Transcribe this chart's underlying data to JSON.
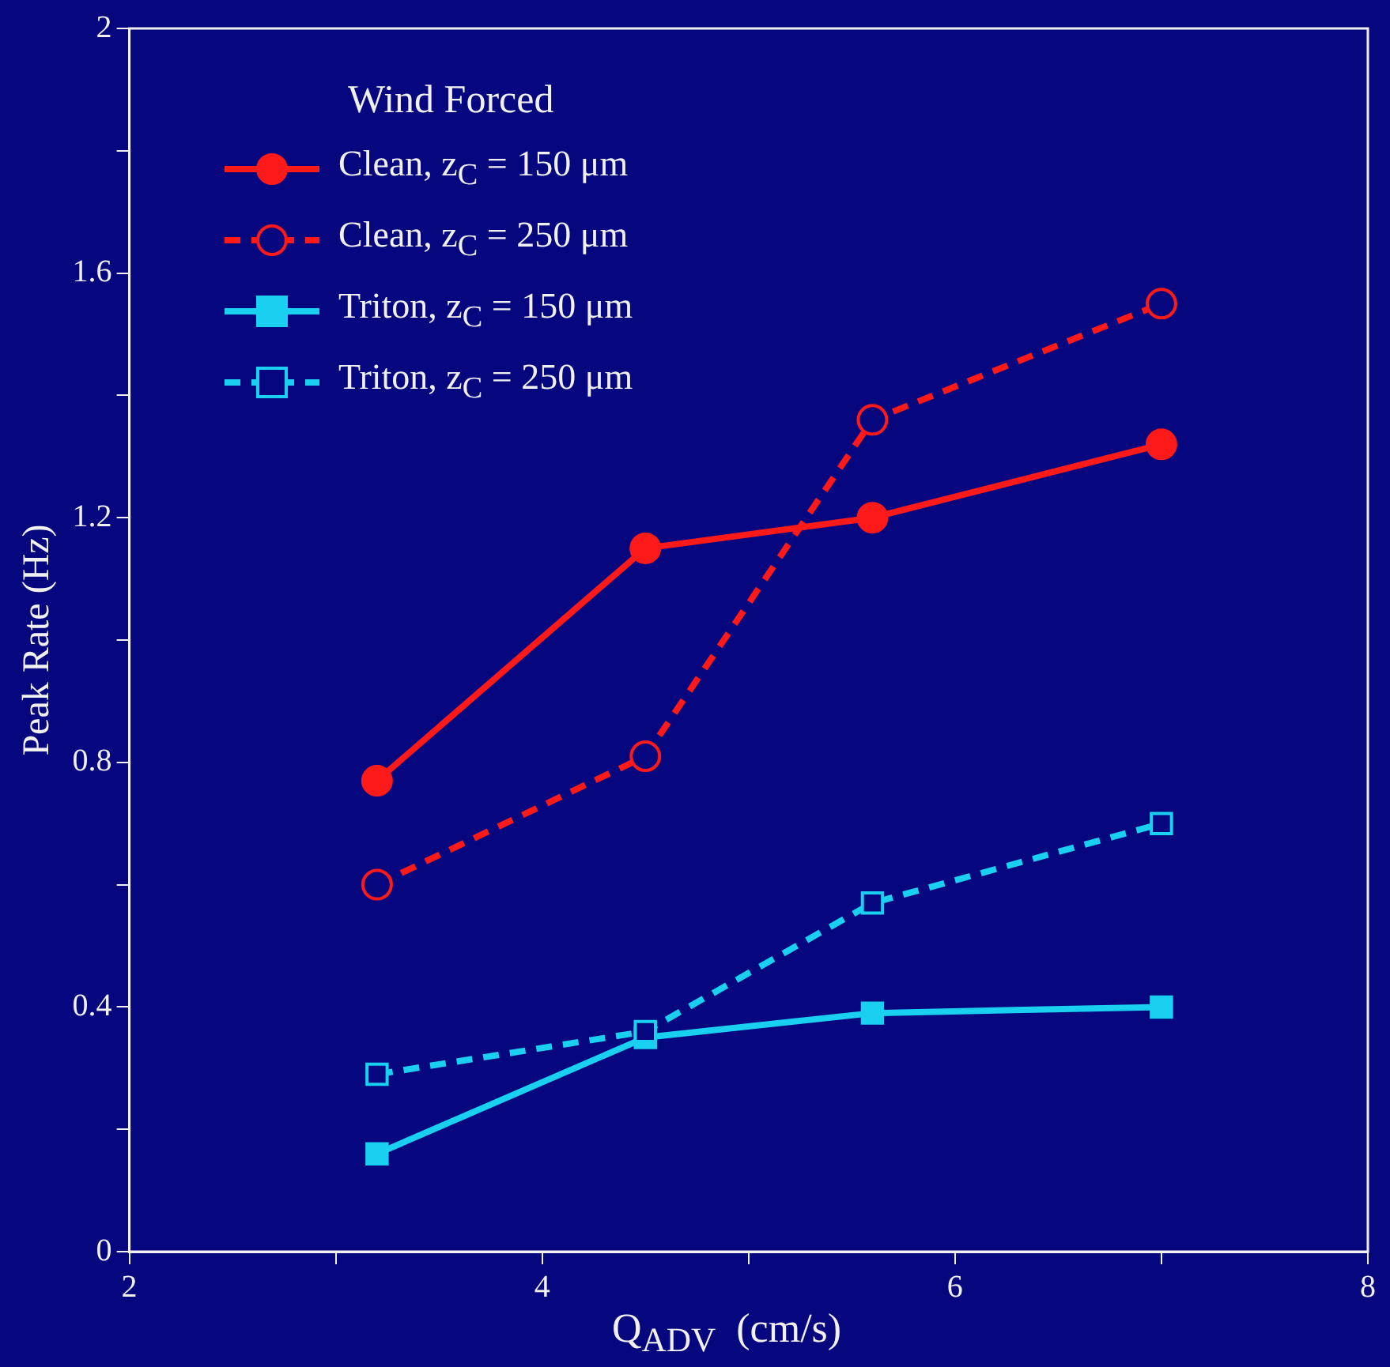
{
  "chart_data": {
    "type": "line",
    "xlabel": "Q$_{ADV}$  (cm/s)",
    "ylabel": "Peak Rate (Hz)",
    "legend_title": "Wind Forced",
    "legend": "top left",
    "grid": false,
    "xlim": [
      2,
      8
    ],
    "xticks": [
      2,
      {
        "value": 3,
        "label": null
      },
      4,
      {
        "value": 5,
        "label": null
      },
      6,
      {
        "value": 7,
        "label": null
      },
      8
    ],
    "ylim": [
      0,
      2
    ],
    "yticks": [
      0,
      {
        "value": 0.2,
        "label": null
      },
      0.4,
      {
        "value": 0.6,
        "label": null
      },
      0.8,
      {
        "value": 1,
        "label": null
      },
      1.2,
      {
        "value": 1.4,
        "label": null
      },
      1.6,
      {
        "value": 1.8,
        "label": null
      },
      2
    ],
    "series": [
      {
        "name": "Clean, z$_{C}$ = 150 μm",
        "color": "#ff1a1a",
        "marker": "circle",
        "line_style": "solid",
        "x": [
          3.2,
          4.5,
          5.6,
          7
        ],
        "values": [
          0.77,
          1.15,
          1.2,
          1.32
        ]
      },
      {
        "name": "Clean, z$_{C}$ = 250 μm",
        "color": "#ff1a1a",
        "marker": "circle",
        "line_style": "dashed",
        "x": [
          3.2,
          4.5,
          5.6,
          7
        ],
        "values": [
          0.6,
          0.81,
          1.36,
          1.55
        ]
      },
      {
        "name": "Triton, z$_{C}$ = 150 μm",
        "color": "#1ad0f0",
        "marker": "square",
        "line_style": "solid",
        "x": [
          3.2,
          4.5,
          5.6,
          7
        ],
        "values": [
          0.16,
          0.35,
          0.39,
          0.4
        ]
      },
      {
        "name": "Triton, z$_{C}$ = 250 μm",
        "color": "#1ad0f0",
        "marker": "square",
        "line_style": "dashed",
        "x": [
          3.2,
          4.5,
          5.6,
          7
        ],
        "values": [
          0.29,
          0.36,
          0.57,
          0.7
        ]
      }
    ]
  }
}
